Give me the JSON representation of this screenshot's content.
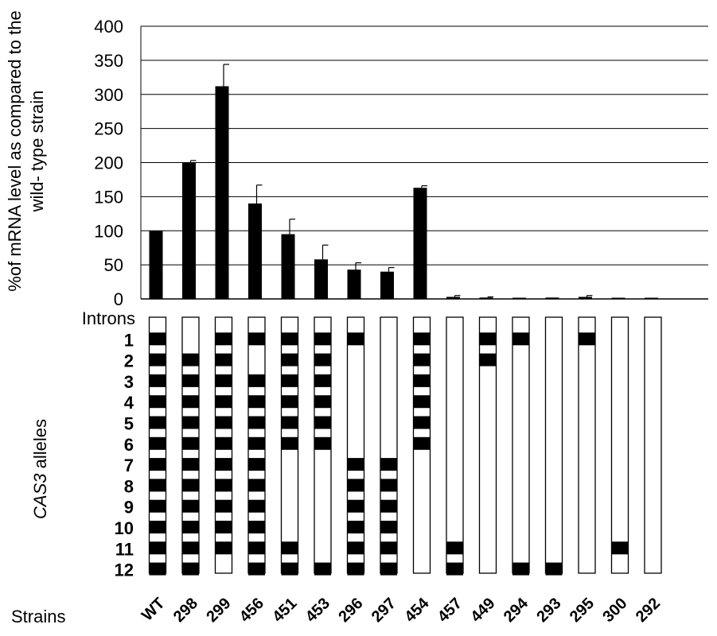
{
  "chart_data": {
    "type": "bar",
    "ylabel_line1": "%of mRNA level as compared to the",
    "ylabel_line2": "wild- type strain",
    "ylim": [
      0,
      400
    ],
    "yticks": [
      "400",
      "350",
      "300",
      "250",
      "200",
      "150",
      "100",
      "50",
      "0"
    ],
    "grid": true,
    "categories": [
      "WT",
      "298",
      "299",
      "456",
      "451",
      "453",
      "296",
      "297",
      "454",
      "457",
      "449",
      "294",
      "293",
      "295",
      "300",
      "292"
    ],
    "values": [
      100,
      200,
      312,
      140,
      95,
      58,
      43,
      40,
      163,
      3,
      2,
      1,
      2,
      3,
      1,
      1
    ],
    "errors": [
      0,
      3,
      32,
      27,
      22,
      21,
      10,
      6,
      3,
      2,
      1,
      0,
      0,
      2,
      0,
      0
    ],
    "bar_color": "#000000"
  },
  "introns": {
    "header": "Introns",
    "labels": [
      "1",
      "2",
      "3",
      "4",
      "5",
      "6",
      "7",
      "8",
      "9",
      "10",
      "11",
      "12"
    ],
    "alleles": [
      [
        1,
        1,
        1,
        1,
        1,
        1,
        1,
        1,
        1,
        1,
        1,
        1
      ],
      [
        0,
        1,
        1,
        1,
        1,
        1,
        1,
        1,
        1,
        1,
        1,
        1
      ],
      [
        1,
        1,
        1,
        1,
        1,
        1,
        1,
        1,
        1,
        1,
        1,
        0
      ],
      [
        1,
        0,
        1,
        1,
        1,
        1,
        1,
        1,
        1,
        1,
        1,
        1
      ],
      [
        1,
        1,
        1,
        1,
        1,
        1,
        0,
        0,
        0,
        0,
        1,
        1
      ],
      [
        1,
        1,
        1,
        1,
        1,
        1,
        0,
        0,
        0,
        0,
        0,
        1
      ],
      [
        1,
        0,
        0,
        0,
        0,
        0,
        1,
        1,
        1,
        1,
        1,
        1
      ],
      [
        0,
        0,
        0,
        0,
        0,
        0,
        1,
        1,
        1,
        1,
        1,
        1
      ],
      [
        1,
        1,
        1,
        1,
        1,
        1,
        0,
        0,
        0,
        0,
        0,
        0
      ],
      [
        0,
        0,
        0,
        0,
        0,
        0,
        0,
        0,
        0,
        0,
        1,
        1
      ],
      [
        1,
        1,
        0,
        0,
        0,
        0,
        0,
        0,
        0,
        0,
        0,
        0
      ],
      [
        1,
        0,
        0,
        0,
        0,
        0,
        0,
        0,
        0,
        0,
        0,
        1
      ],
      [
        0,
        0,
        0,
        0,
        0,
        0,
        0,
        0,
        0,
        0,
        0,
        1
      ],
      [
        1,
        0,
        0,
        0,
        0,
        0,
        0,
        0,
        0,
        0,
        0,
        0
      ],
      [
        0,
        0,
        0,
        0,
        0,
        0,
        0,
        0,
        0,
        0,
        1,
        0
      ],
      [
        0,
        0,
        0,
        0,
        0,
        0,
        0,
        0,
        0,
        0,
        0,
        0
      ]
    ]
  },
  "cas_label_italic": "CAS3",
  "cas_label_rest": " alleles",
  "strains_header": "Strains"
}
